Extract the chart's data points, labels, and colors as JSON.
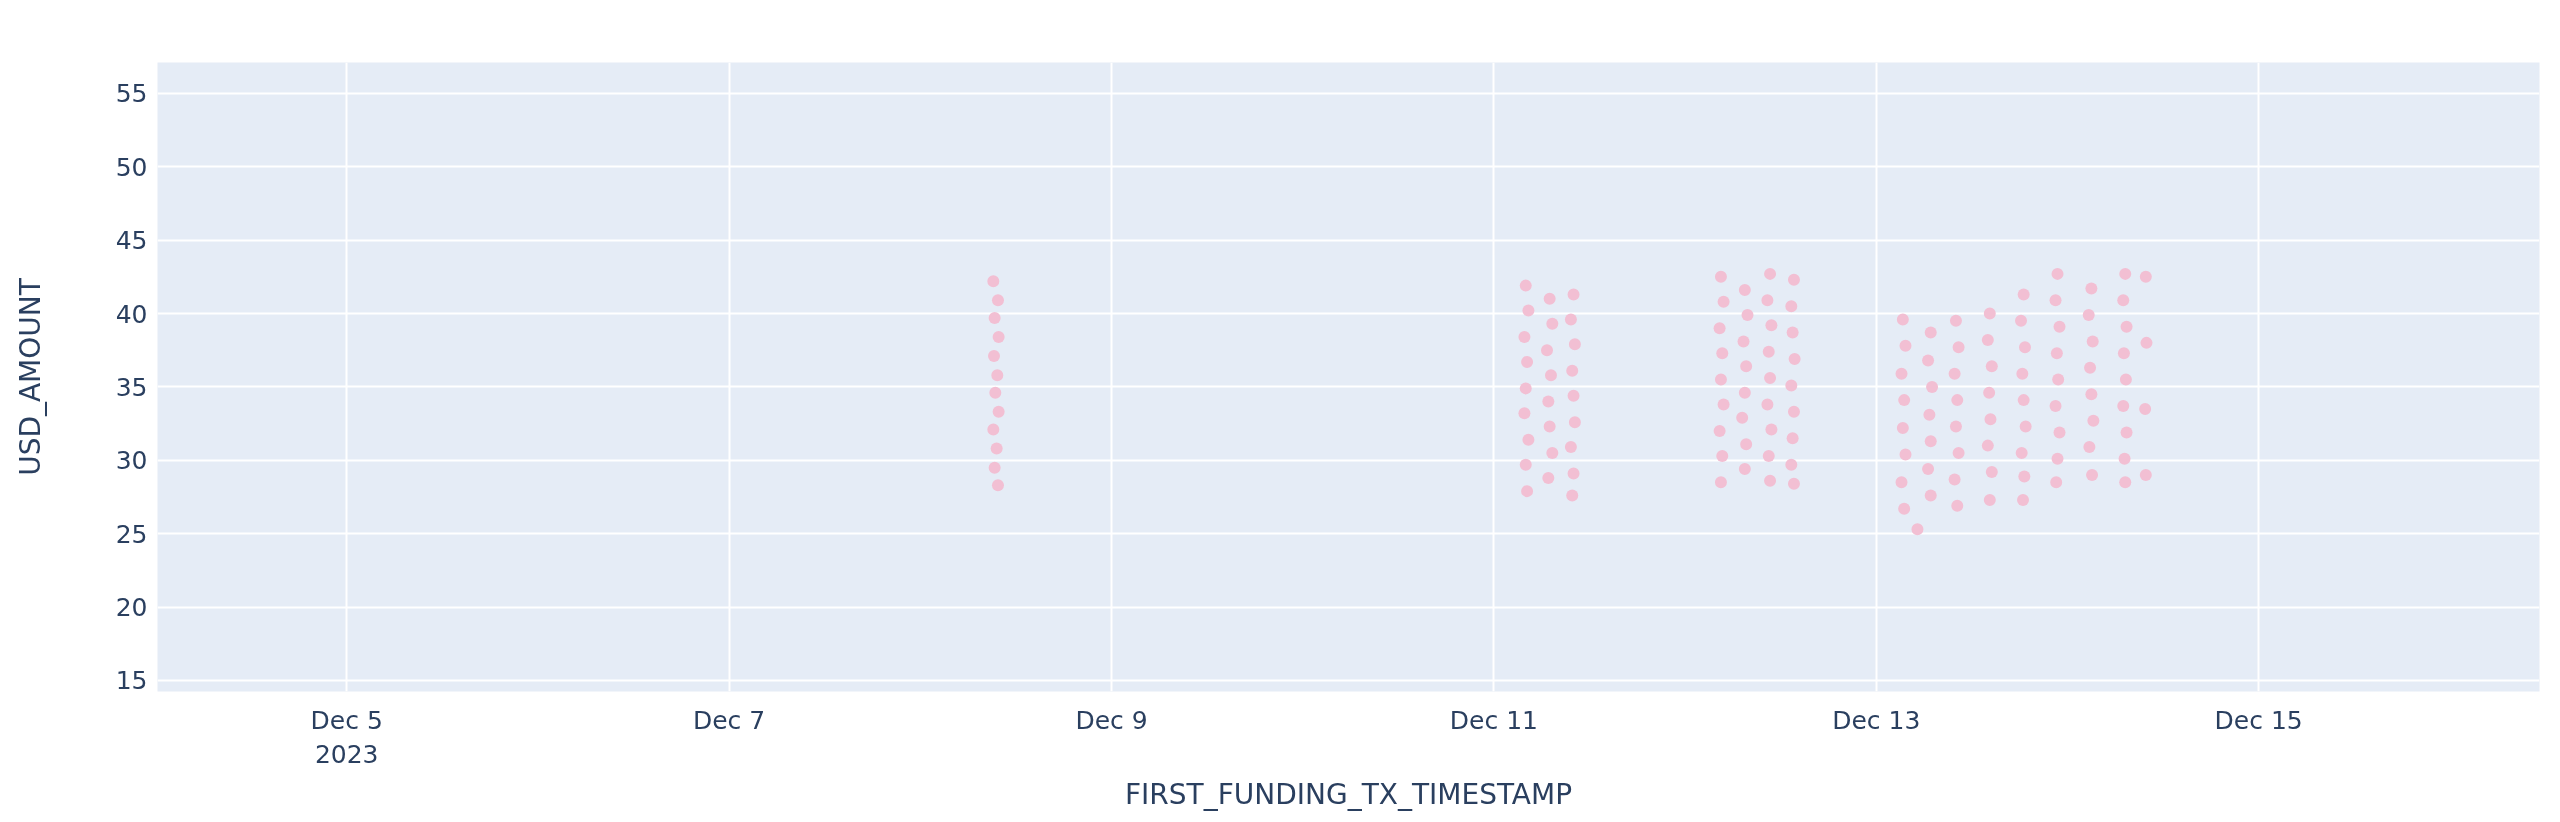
{
  "chart_data": {
    "type": "scatter",
    "xlabel": "FIRST_FUNDING_TX_TIMESTAMP",
    "ylabel": "USD_AMOUNT",
    "xlim": [
      "2023-12-04T00:15",
      "2023-12-16T11:15"
    ],
    "ylim": [
      14.25,
      57.1
    ],
    "xticks": [
      {
        "value": "2023-12-05",
        "label": "Dec 5\n2023"
      },
      {
        "value": "2023-12-07",
        "label": "Dec 7"
      },
      {
        "value": "2023-12-09",
        "label": "Dec 9"
      },
      {
        "value": "2023-12-11",
        "label": "Dec 11"
      },
      {
        "value": "2023-12-13",
        "label": "Dec 13"
      },
      {
        "value": "2023-12-15",
        "label": "Dec 15"
      }
    ],
    "yticks": [
      15,
      20,
      25,
      30,
      35,
      40,
      45,
      50,
      55
    ],
    "grid": true,
    "marker": "circle",
    "color": "#f2bfd3",
    "x": [
      "2023-12-08T09:10",
      "2023-12-08T09:45",
      "2023-12-08T09:20",
      "2023-12-08T09:50",
      "2023-12-08T09:15",
      "2023-12-08T09:40",
      "2023-12-08T09:25",
      "2023-12-08T09:50",
      "2023-12-08T09:10",
      "2023-12-08T09:35",
      "2023-12-08T09:20",
      "2023-12-08T09:45",
      "2023-12-11T04:00",
      "2023-12-11T04:20",
      "2023-12-11T03:50",
      "2023-12-11T04:10",
      "2023-12-11T04:00",
      "2023-12-11T03:50",
      "2023-12-11T04:20",
      "2023-12-11T04:00",
      "2023-12-11T04:10",
      "2023-12-11T07:00",
      "2023-12-11T07:20",
      "2023-12-11T06:40",
      "2023-12-11T07:10",
      "2023-12-11T06:50",
      "2023-12-11T07:00",
      "2023-12-11T07:20",
      "2023-12-11T06:50",
      "2023-12-11T10:00",
      "2023-12-11T09:40",
      "2023-12-11T10:10",
      "2023-12-11T09:50",
      "2023-12-11T10:00",
      "2023-12-11T10:10",
      "2023-12-11T09:40",
      "2023-12-11T10:00",
      "2023-12-11T09:50",
      "2023-12-12T04:30",
      "2023-12-12T04:50",
      "2023-12-12T04:20",
      "2023-12-12T04:40",
      "2023-12-12T04:30",
      "2023-12-12T04:50",
      "2023-12-12T04:20",
      "2023-12-12T04:40",
      "2023-12-12T04:30",
      "2023-12-12T07:30",
      "2023-12-12T07:50",
      "2023-12-12T07:20",
      "2023-12-12T07:40",
      "2023-12-12T07:30",
      "2023-12-12T07:10",
      "2023-12-12T07:40",
      "2023-12-12T07:30",
      "2023-12-12T10:40",
      "2023-12-12T10:20",
      "2023-12-12T10:50",
      "2023-12-12T10:30",
      "2023-12-12T10:40",
      "2023-12-12T10:20",
      "2023-12-12T10:50",
      "2023-12-12T10:30",
      "2023-12-12T10:40",
      "2023-12-12T13:40",
      "2023-12-12T13:20",
      "2023-12-12T13:30",
      "2023-12-12T13:45",
      "2023-12-12T13:20",
      "2023-12-12T13:40",
      "2023-12-12T13:30",
      "2023-12-12T13:20",
      "2023-12-12T13:40",
      "2023-12-13T03:20",
      "2023-12-13T03:40",
      "2023-12-13T03:10",
      "2023-12-13T03:30",
      "2023-12-13T03:20",
      "2023-12-13T03:40",
      "2023-12-13T03:10",
      "2023-12-13T03:30",
      "2023-12-13T06:50",
      "2023-12-13T06:30",
      "2023-12-13T07:00",
      "2023-12-13T06:40",
      "2023-12-13T06:50",
      "2023-12-13T06:30",
      "2023-12-13T06:50",
      "2023-12-13T05:10",
      "2023-12-13T10:00",
      "2023-12-13T10:20",
      "2023-12-13T09:50",
      "2023-12-13T10:10",
      "2023-12-13T10:00",
      "2023-12-13T10:20",
      "2023-12-13T09:50",
      "2023-12-13T10:10",
      "2023-12-13T14:15",
      "2023-12-13T14:00",
      "2023-12-13T14:30",
      "2023-12-13T14:10",
      "2023-12-13T14:20",
      "2023-12-13T14:00",
      "2023-12-13T14:30",
      "2023-12-13T14:15",
      "2023-12-13T18:30",
      "2023-12-13T18:10",
      "2023-12-13T18:40",
      "2023-12-13T18:20",
      "2023-12-13T18:30",
      "2023-12-13T18:45",
      "2023-12-13T18:15",
      "2023-12-13T18:35",
      "2023-12-13T18:25",
      "2023-12-13T22:45",
      "2023-12-13T22:30",
      "2023-12-13T23:00",
      "2023-12-13T22:40",
      "2023-12-13T22:50",
      "2023-12-13T22:30",
      "2023-12-13T23:00",
      "2023-12-13T22:45",
      "2023-12-13T22:35",
      "2023-12-14T03:00",
      "2023-12-14T02:40",
      "2023-12-14T03:10",
      "2023-12-14T02:50",
      "2023-12-14T03:00",
      "2023-12-14T03:15",
      "2023-12-14T02:45",
      "2023-12-14T03:05",
      "2023-12-14T07:15",
      "2023-12-14T07:00",
      "2023-12-14T07:25",
      "2023-12-14T07:05",
      "2023-12-14T07:20",
      "2023-12-14T07:00",
      "2023-12-14T07:25",
      "2023-12-14T07:10",
      "2023-12-14T07:15",
      "2023-12-14T09:50",
      "2023-12-14T09:55",
      "2023-12-14T09:45",
      "2023-12-14T09:50"
    ],
    "values": [
      42.2,
      40.9,
      39.7,
      38.4,
      37.1,
      35.8,
      34.6,
      33.3,
      32.1,
      30.8,
      29.5,
      28.3,
      41.9,
      40.2,
      38.4,
      36.7,
      34.9,
      33.2,
      31.4,
      29.7,
      27.9,
      41.0,
      39.3,
      37.5,
      35.8,
      34.0,
      32.3,
      30.5,
      28.8,
      41.3,
      39.6,
      37.9,
      36.1,
      34.4,
      32.6,
      30.9,
      29.1,
      27.6,
      42.5,
      40.8,
      39.0,
      37.3,
      35.5,
      33.8,
      32.0,
      30.3,
      28.5,
      41.6,
      39.9,
      38.1,
      36.4,
      34.6,
      32.9,
      31.1,
      29.4,
      42.7,
      40.9,
      39.2,
      37.4,
      35.6,
      33.8,
      32.1,
      30.3,
      28.6,
      42.3,
      40.5,
      38.7,
      36.9,
      35.1,
      33.3,
      31.5,
      29.7,
      28.4,
      39.6,
      37.8,
      35.9,
      34.1,
      32.2,
      30.4,
      28.5,
      26.7,
      38.7,
      36.8,
      35.0,
      33.1,
      31.3,
      29.4,
      27.6,
      25.3,
      39.5,
      37.7,
      35.9,
      34.1,
      32.3,
      30.5,
      28.7,
      26.9,
      40.0,
      38.2,
      36.4,
      34.6,
      32.8,
      31.0,
      29.2,
      27.3,
      41.3,
      39.5,
      37.7,
      35.9,
      34.1,
      32.3,
      30.5,
      28.9,
      27.3,
      42.7,
      40.9,
      39.1,
      37.3,
      35.5,
      33.7,
      31.9,
      30.1,
      28.5,
      41.7,
      39.9,
      38.1,
      36.3,
      34.5,
      32.7,
      30.9,
      29.0,
      42.7,
      40.9,
      39.1,
      37.3,
      35.5,
      33.7,
      31.9,
      30.1,
      28.5,
      42.5,
      38.0,
      33.5,
      29.0
    ]
  }
}
